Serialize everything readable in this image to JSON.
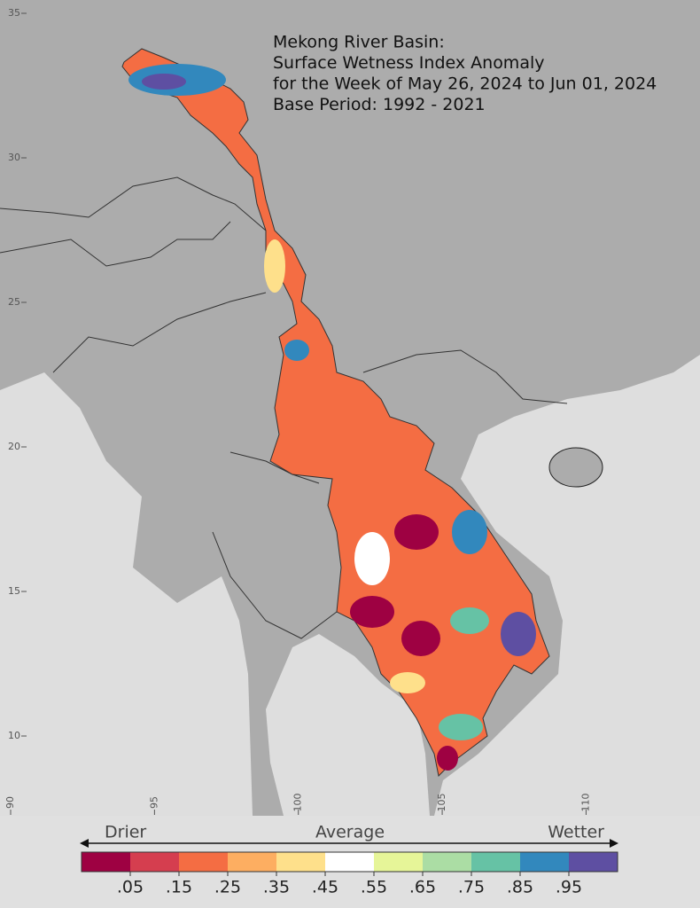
{
  "title_lines": [
    "Mekong River Basin:",
    "Surface Wetness Index Anomaly",
    "for the Week of May 26, 2024 to Jun 01, 2024",
    "Base Period: 1992 - 2021"
  ],
  "map": {
    "xlim": [
      89.63,
      113.96
    ],
    "ylim": [
      7.24,
      35.46
    ],
    "lat_ticks": [
      35,
      30,
      25,
      20,
      15,
      10
    ],
    "lon_ticks": [
      90,
      95,
      100,
      105,
      110
    ]
  },
  "legend": {
    "left": "Drier",
    "center": "Average",
    "right": "Wetter",
    "colors": [
      "#9e0142",
      "#d53e4f",
      "#f46d43",
      "#fdae61",
      "#fee08b",
      "#ffffff",
      "#e6f598",
      "#abdda4",
      "#66c2a5",
      "#3288bd",
      "#5e4fa2"
    ],
    "ticks": [
      {
        "value": 0.05,
        "label": ".05"
      },
      {
        "value": 0.15,
        "label": ".15"
      },
      {
        "value": 0.25,
        "label": ".25"
      },
      {
        "value": 0.35,
        "label": ".35"
      },
      {
        "value": 0.45,
        "label": ".45"
      },
      {
        "value": 0.55,
        "label": ".55"
      },
      {
        "value": 0.65,
        "label": ".65"
      },
      {
        "value": 0.75,
        "label": ".75"
      },
      {
        "value": 0.85,
        "label": ".85"
      },
      {
        "value": 0.95,
        "label": ".95"
      }
    ]
  }
}
